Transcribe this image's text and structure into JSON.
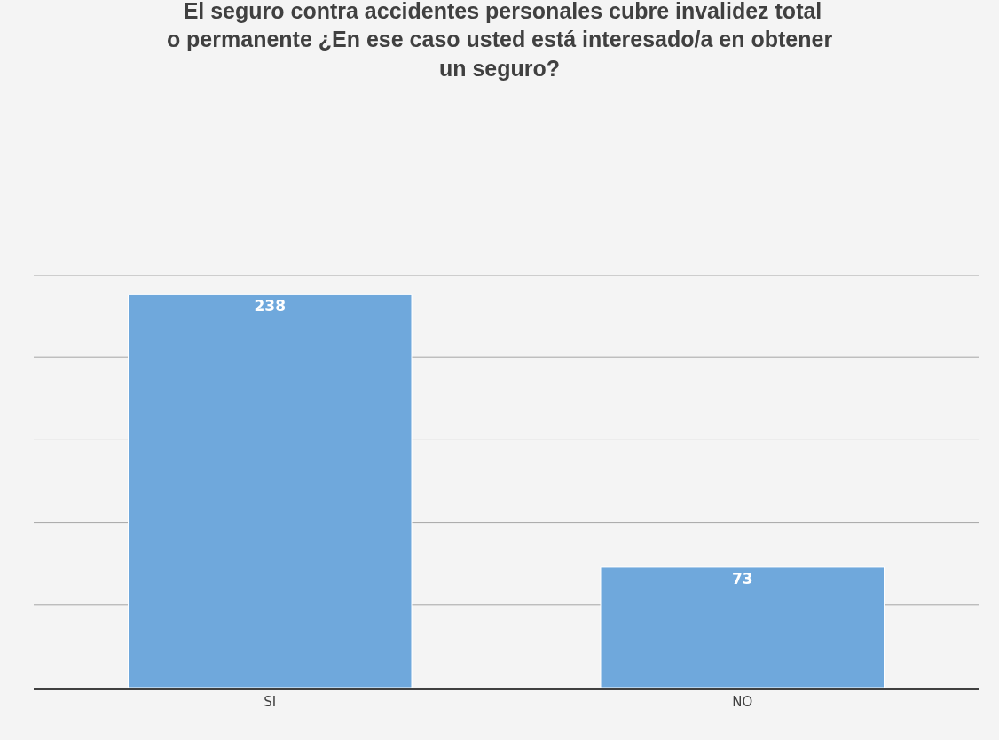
{
  "chart_data": {
    "type": "bar",
    "title": " El seguro contra accidentes personales cubre invalidez total o permanente ¿En ese caso usted está interesado/a en obtener un seguro?",
    "categories": [
      "SI",
      "NO"
    ],
    "values": [
      238,
      73
    ],
    "color": "#6fa8dc",
    "data_labels": true,
    "ylim": [
      0,
      250
    ],
    "yticks": [
      {
        "value": 0,
        "label": null
      },
      {
        "value": 50,
        "label": null
      },
      {
        "value": 100,
        "label": null
      },
      {
        "value": 150,
        "label": null
      },
      {
        "value": 200,
        "label": null
      },
      {
        "value": 250,
        "label": null
      }
    ],
    "tick_labels": "x",
    "grid": "y",
    "legend": false
  }
}
